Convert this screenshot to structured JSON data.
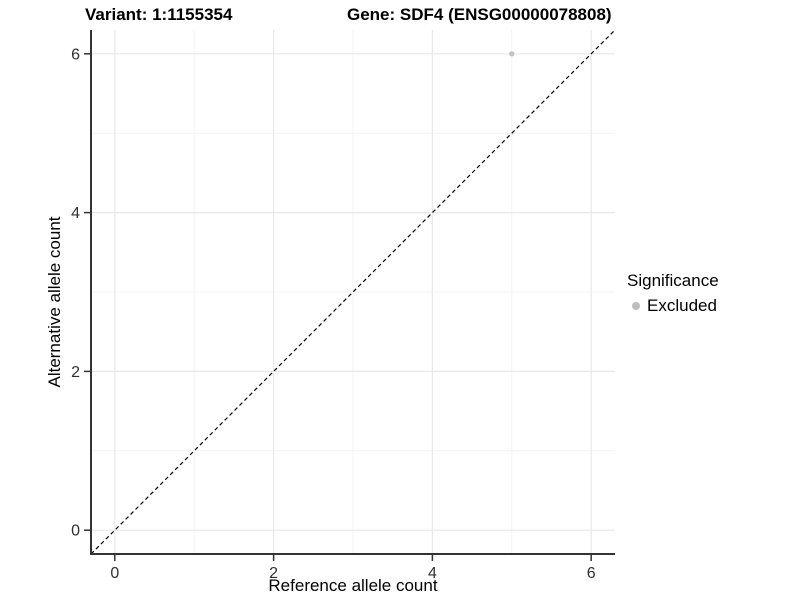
{
  "titles": {
    "left": "Variant: 1:1155354",
    "right": "Gene: SDF4 (ENSG00000078808)"
  },
  "axes": {
    "x_label": "Reference allele count",
    "y_label": "Alternative allele count"
  },
  "legend": {
    "title": "Significance",
    "entries": [
      {
        "label": "Excluded",
        "color": "#bebebe"
      }
    ]
  },
  "style": {
    "grid_major": "#e8e8e8",
    "grid_minor": "#f3f3f3",
    "axis_line": "#333333",
    "tick_text": "#303030",
    "reference_line": "#000000",
    "point_fill": "#c2c2c2",
    "background": "#ffffff"
  },
  "chart_data": {
    "type": "scatter",
    "title": "Variant: 1:1155354   Gene: SDF4 (ENSG00000078808)",
    "xlabel": "Reference allele count",
    "ylabel": "Alternative allele count",
    "xlim": [
      -0.3,
      6.3
    ],
    "ylim": [
      -0.3,
      6.3
    ],
    "x_major_ticks": [
      0,
      2,
      4,
      6
    ],
    "y_major_ticks": [
      0,
      2,
      4,
      6
    ],
    "x_minor_ticks": [
      1,
      3,
      5
    ],
    "y_minor_ticks": [
      1,
      3,
      5
    ],
    "grid": "on",
    "legend_position": "right",
    "series": [
      {
        "name": "Excluded",
        "color": "#c2c2c2",
        "points": [
          {
            "x": 5,
            "y": 6
          }
        ]
      }
    ],
    "reference_line": {
      "kind": "identity",
      "slope": 1,
      "intercept": 0,
      "style": "dashed"
    }
  }
}
